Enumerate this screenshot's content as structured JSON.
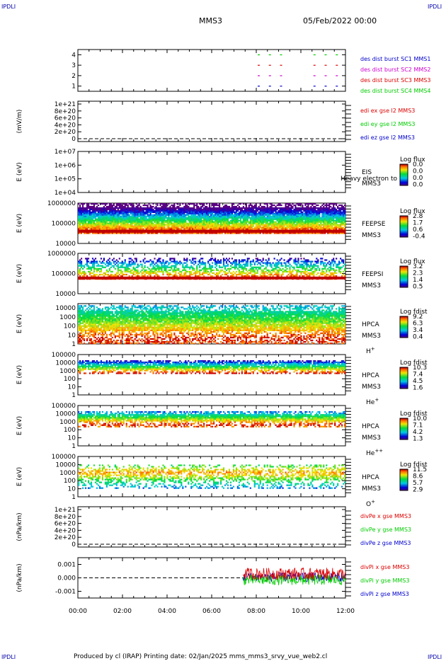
{
  "header": {
    "corner_tl": "IPDLI",
    "corner_tr": "IPDLI",
    "corner_bl": "IPDLI",
    "corner_br": "IPDLI",
    "spacecraft": "MMS3",
    "date": "05/Feb/2022 00:00"
  },
  "footer": {
    "text": "Produced by cl (IRAP)   Printing date: 02/Jan/2025   mms_mms3_srvy_vue_web2.cl"
  },
  "colors": {
    "mms1": "#0000cc",
    "mms2": "#cc00cc",
    "mms3": "#dd0000",
    "mms4": "#00cc00"
  },
  "chart_data": [
    {
      "type": "scatter",
      "panel": "burst",
      "yticks": [
        "4",
        "3",
        "2",
        "1"
      ],
      "ylim": [
        0.5,
        4.5
      ],
      "legend": [
        {
          "name": "des dist burst SC1 MMS1",
          "color": "#0000cc"
        },
        {
          "name": "des dist burst SC2 MMS2",
          "color": "#cc00cc"
        },
        {
          "name": "des dist burst SC3 MMS3",
          "color": "#dd0000"
        },
        {
          "name": "des dist burst SC4 MMS4",
          "color": "#00cc00"
        }
      ],
      "burst_times_hours": [
        8.0,
        8.5,
        9.0,
        10.5,
        11.0,
        11.5
      ]
    },
    {
      "type": "line",
      "panel": "edi",
      "ylabel": "(mV/m)",
      "yticks": [
        "1e+21",
        "8e+20",
        "6e+20",
        "4e+20",
        "2e+20",
        "0"
      ],
      "ylim": [
        0,
        1e+21
      ],
      "legend": [
        {
          "name": "edi ex gse l2 MMS3",
          "color": "#dd0000"
        },
        {
          "name": "edi ey gse l2 MMS3",
          "color": "#00cc00"
        },
        {
          "name": "edi ez gse l2 MMS3",
          "color": "#0000cc"
        }
      ]
    },
    {
      "type": "heatmap",
      "panel": "eis",
      "ylabel": "E (eV)",
      "yticks": [
        "1e+07",
        "1e+06",
        "1e+05",
        "1e+04"
      ],
      "ylim": [
        10000.0,
        10000000.0
      ],
      "label_lines": [
        "EIS",
        "MMS3"
      ],
      "overlay": "Heavy electron to",
      "colorbar_title": "Log flux",
      "colorbar_ticks": [
        "0.0",
        "0.0",
        "0.0",
        "0.0"
      ],
      "band": null
    },
    {
      "type": "heatmap",
      "panel": "feepse",
      "ylabel": "E (eV)",
      "yticks": [
        "1000000",
        "100000",
        "10000"
      ],
      "ylim": [
        10000.0,
        1000000.0
      ],
      "label_lines": [
        "FEEPSE",
        "MMS3"
      ],
      "colorbar_title": "Log flux",
      "colorbar_ticks": [
        "2.8",
        "1.7",
        "0.6",
        "-0.4"
      ],
      "band": {
        "emin": 30000,
        "emax": 1000000,
        "peak": 40000,
        "spread": 0.15,
        "density": 0.96
      }
    },
    {
      "type": "heatmap",
      "panel": "feepsi",
      "ylabel": "E (eV)",
      "yticks": [
        "1000000",
        "100000",
        "10000"
      ],
      "ylim": [
        10000.0,
        1000000.0
      ],
      "label_lines": [
        "FEEPSI",
        "MMS3"
      ],
      "colorbar_title": "Log flux",
      "colorbar_ticks": [
        "3.2",
        "2.3",
        "1.4",
        "0.5"
      ],
      "band": {
        "emin": 50000,
        "emax": 600000,
        "peak": 60000,
        "spread": 0.35,
        "density": 0.55
      }
    },
    {
      "type": "heatmap",
      "panel": "hpca_h",
      "ylabel": "E (eV)",
      "yticks": [
        "10000",
        "1000",
        "100",
        "10",
        "1"
      ],
      "ylim": [
        1,
        30000
      ],
      "label_lines": [
        "HPCA",
        "MMS3",
        "H+"
      ],
      "colorbar_title": "Log fdist",
      "colorbar_ticks": [
        "9.2",
        "6.3",
        "3.4",
        "0.4"
      ],
      "band": {
        "emin": 1,
        "emax": 20000,
        "peak": 3,
        "spread": 0.7,
        "density": 0.93
      }
    },
    {
      "type": "heatmap",
      "panel": "hpca_he",
      "ylabel": "E (eV)",
      "yticks": [
        "100000",
        "10000",
        "1000",
        "100",
        "10",
        "1"
      ],
      "ylim": [
        1,
        100000
      ],
      "label_lines": [
        "HPCA",
        "MMS3",
        "He+"
      ],
      "colorbar_title": "Log fdist",
      "colorbar_ticks": [
        "10.3",
        "7.4",
        "4.5",
        "1.6"
      ],
      "band": {
        "emin": 400,
        "emax": 20000,
        "peak": 500,
        "spread": 0.4,
        "density": 0.9
      }
    },
    {
      "type": "heatmap",
      "panel": "hpca_hepp",
      "ylabel": "E (eV)",
      "yticks": [
        "100000",
        "10000",
        "1000",
        "100",
        "10",
        "1"
      ],
      "ylim": [
        1,
        100000
      ],
      "label_lines": [
        "HPCA",
        "MMS3",
        "He++"
      ],
      "colorbar_title": "Log fdist",
      "colorbar_ticks": [
        "10.0",
        "7.1",
        "4.2",
        "1.3"
      ],
      "band": {
        "emin": 200,
        "emax": 20000,
        "peak": 400,
        "spread": 0.5,
        "density": 0.92
      }
    },
    {
      "type": "heatmap",
      "panel": "hpca_o",
      "ylabel": "E (eV)",
      "yticks": [
        "100000",
        "10000",
        "1000",
        "100",
        "10",
        "1"
      ],
      "ylim": [
        1,
        100000
      ],
      "label_lines": [
        "HPCA",
        "MMS3",
        "O+"
      ],
      "colorbar_title": "Log fdist",
      "colorbar_ticks": [
        "11.5",
        "8.6",
        "5.7",
        "2.9"
      ],
      "band": {
        "emin": 10,
        "emax": 10000,
        "peak": 1000,
        "spread": 0.5,
        "density": 0.55
      }
    },
    {
      "type": "line",
      "panel": "divpe",
      "ylabel": "(nPa/km)",
      "yticks": [
        "1e+21",
        "8e+20",
        "6e+20",
        "4e+20",
        "2e+20",
        "0"
      ],
      "ylim": [
        0,
        1e+21
      ],
      "legend": [
        {
          "name": "divPe x gse MMS3",
          "color": "#dd0000"
        },
        {
          "name": "divPe y gse MMS3",
          "color": "#00cc00"
        },
        {
          "name": "divPe z gse MMS3",
          "color": "#0000cc"
        }
      ]
    },
    {
      "type": "line",
      "panel": "divpi",
      "ylabel": "(nPa/km)",
      "yticks": [
        "0.001",
        "0.000",
        "-0.001"
      ],
      "ylim": [
        -0.0015,
        0.0015
      ],
      "legend": [
        {
          "name": "divPi x gse MMS3",
          "color": "#dd0000"
        },
        {
          "name": "divPi y gse MMS3",
          "color": "#00cc00"
        },
        {
          "name": "divPi z gse MMS3",
          "color": "#0000cc"
        }
      ],
      "data_start_hour": 7.4,
      "data_end_hour": 12.0
    }
  ],
  "time_axis": {
    "ticks": [
      "00:00",
      "02:00",
      "04:00",
      "06:00",
      "08:00",
      "10:00",
      "12:00"
    ],
    "range_hours": [
      0,
      12
    ]
  }
}
